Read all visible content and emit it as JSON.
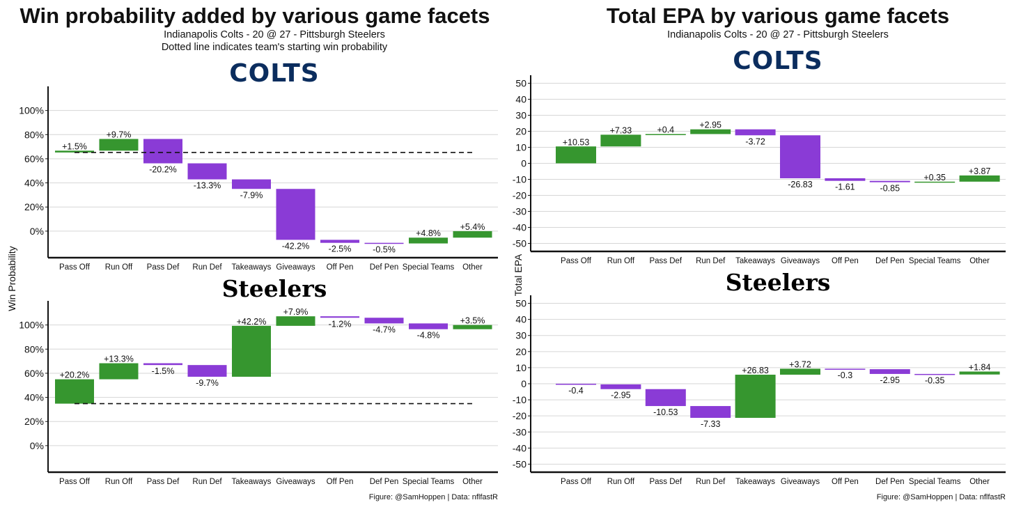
{
  "colors": {
    "positive": "#36962f",
    "negative": "#8a3bd6",
    "grid": "#d6d6d6",
    "colts_navy": "#0b2d5e"
  },
  "left": {
    "title": "Win probability added by various game facets",
    "subtitle1": "Indianapolis Colts - 20 @ 27 - Pittsburgh Steelers",
    "subtitle2": "Dotted line indicates team's starting win probability",
    "ylabel": "Win Probability",
    "caption": "Figure: @SamHoppen | Data: nflfastR"
  },
  "right": {
    "title": "Total EPA by various game facets",
    "subtitle1": "Indianapolis Colts - 20 @ 27 - Pittsburgh Steelers",
    "ylabel": "Total EPA",
    "caption": "Figure: @SamHoppen | Data: nflfastR"
  },
  "chart_data": [
    {
      "type": "waterfall",
      "panel": "wp-colts",
      "team_logo": "COLTS",
      "ylabel": "Win Probability",
      "categories": [
        "Pass Off",
        "Run Off",
        "Pass Def",
        "Run Def",
        "Takeaways",
        "Giveaways",
        "Off Pen",
        "Def Pen",
        "Special Teams",
        "Other"
      ],
      "start": 65.2,
      "baseline_dashed": 65.2,
      "values": [
        1.5,
        9.7,
        -20.2,
        -13.3,
        -7.9,
        -42.2,
        -2.5,
        -0.5,
        4.8,
        5.4
      ],
      "labels": [
        "+1.5%",
        "+9.7%",
        "-20.2%",
        "-13.3%",
        "-7.9%",
        "-42.2%",
        "-2.5%",
        "-0.5%",
        "+4.8%",
        "+5.4%"
      ],
      "yticks": [
        0,
        20,
        40,
        60,
        80,
        100
      ],
      "ytick_labels": [
        "0%",
        "20%",
        "40%",
        "60%",
        "80%",
        "100%"
      ],
      "ylim": [
        -22,
        120
      ],
      "grid": true
    },
    {
      "type": "waterfall",
      "panel": "wp-steelers",
      "team_logo": "Steelers",
      "ylabel": "Win Probability",
      "categories": [
        "Pass Off",
        "Run Off",
        "Pass Def",
        "Run Def",
        "Takeaways",
        "Giveaways",
        "Off Pen",
        "Def Pen",
        "Special Teams",
        "Other"
      ],
      "start": 34.8,
      "baseline_dashed": 34.8,
      "values": [
        20.2,
        13.3,
        -1.5,
        -9.7,
        42.2,
        7.9,
        -1.2,
        -4.7,
        -4.8,
        3.5
      ],
      "labels": [
        "+20.2%",
        "+13.3%",
        "-1.5%",
        "-9.7%",
        "+42.2%",
        "+7.9%",
        "-1.2%",
        "-4.7%",
        "-4.8%",
        "+3.5%"
      ],
      "yticks": [
        0,
        20,
        40,
        60,
        80,
        100
      ],
      "ytick_labels": [
        "0%",
        "20%",
        "40%",
        "60%",
        "80%",
        "100%"
      ],
      "ylim": [
        -22,
        120
      ],
      "grid": true
    },
    {
      "type": "waterfall",
      "panel": "epa-colts",
      "team_logo": "COLTS",
      "ylabel": "Total EPA",
      "categories": [
        "Pass Off",
        "Run Off",
        "Pass Def",
        "Run Def",
        "Takeaways",
        "Giveaways",
        "Off Pen",
        "Def Pen",
        "Special Teams",
        "Other"
      ],
      "start": 0,
      "values": [
        10.53,
        7.33,
        0.4,
        2.95,
        -3.72,
        -26.83,
        -1.61,
        -0.85,
        0.35,
        3.87
      ],
      "labels": [
        "+10.53",
        "+7.33",
        "+0.4",
        "+2.95",
        "-3.72",
        "-26.83",
        "-1.61",
        "-0.85",
        "+0.35",
        "+3.87"
      ],
      "yticks": [
        -50,
        -40,
        -30,
        -20,
        -10,
        0,
        10,
        20,
        30,
        40,
        50
      ],
      "ytick_labels": [
        "-50",
        "-40",
        "-30",
        "-20",
        "-10",
        "0",
        "10",
        "20",
        "30",
        "40",
        "50"
      ],
      "ylim": [
        -55,
        55
      ],
      "grid": true
    },
    {
      "type": "waterfall",
      "panel": "epa-steelers",
      "team_logo": "Steelers",
      "ylabel": "Total EPA",
      "categories": [
        "Pass Off",
        "Run Off",
        "Pass Def",
        "Run Def",
        "Takeaways",
        "Giveaways",
        "Off Pen",
        "Def Pen",
        "Special Teams",
        "Other"
      ],
      "start": 0,
      "values": [
        -0.4,
        -2.95,
        -10.53,
        -7.33,
        26.83,
        3.72,
        -0.3,
        -2.95,
        -0.35,
        1.84
      ],
      "labels": [
        "-0.4",
        "-2.95",
        "-10.53",
        "-7.33",
        "+26.83",
        "+3.72",
        "-0.3",
        "-2.95",
        "-0.35",
        "+1.84"
      ],
      "yticks": [
        -50,
        -40,
        -30,
        -20,
        -10,
        0,
        10,
        20,
        30,
        40,
        50
      ],
      "ytick_labels": [
        "-50",
        "-40",
        "-30",
        "-20",
        "-10",
        "0",
        "10",
        "20",
        "30",
        "40",
        "50"
      ],
      "ylim": [
        -55,
        55
      ],
      "grid": true
    }
  ]
}
